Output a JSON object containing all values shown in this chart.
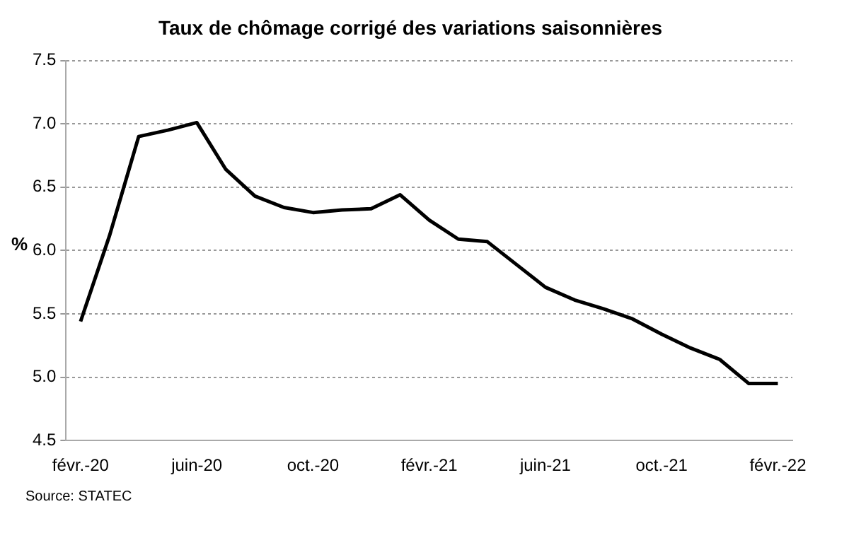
{
  "chart_data": {
    "type": "line",
    "title": "Taux de chômage corrigé des variations saisonnières",
    "ylabel": "%",
    "categories": [
      "févr.-20",
      null,
      null,
      null,
      "juin-20",
      null,
      null,
      null,
      "oct.-20",
      null,
      null,
      null,
      "févr.-21",
      null,
      null,
      null,
      "juin-21",
      null,
      null,
      null,
      "oct.-21",
      null,
      null,
      null,
      "févr.-22"
    ],
    "series": [
      {
        "color": "#000000",
        "values": [
          5.44,
          6.12,
          6.9,
          6.95,
          7.01,
          6.64,
          6.43,
          6.34,
          6.3,
          6.32,
          6.33,
          6.44,
          6.24,
          6.09,
          6.07,
          5.89,
          5.71,
          5.61,
          5.54,
          5.46,
          5.34,
          5.23,
          5.14,
          4.95,
          4.95
        ]
      }
    ],
    "ylim": [
      4.5,
      7.5
    ],
    "yticks": [
      4.5,
      {
        "value": 5,
        "label": "5.0"
      },
      5.5,
      {
        "value": 6,
        "label": "6.0"
      },
      6.5,
      {
        "value": 7,
        "label": "7.0"
      },
      7.5
    ],
    "grid": "y",
    "legend": false,
    "marker": "none",
    "line_style": "solid",
    "annotations": [
      "Source: STATEC"
    ]
  }
}
